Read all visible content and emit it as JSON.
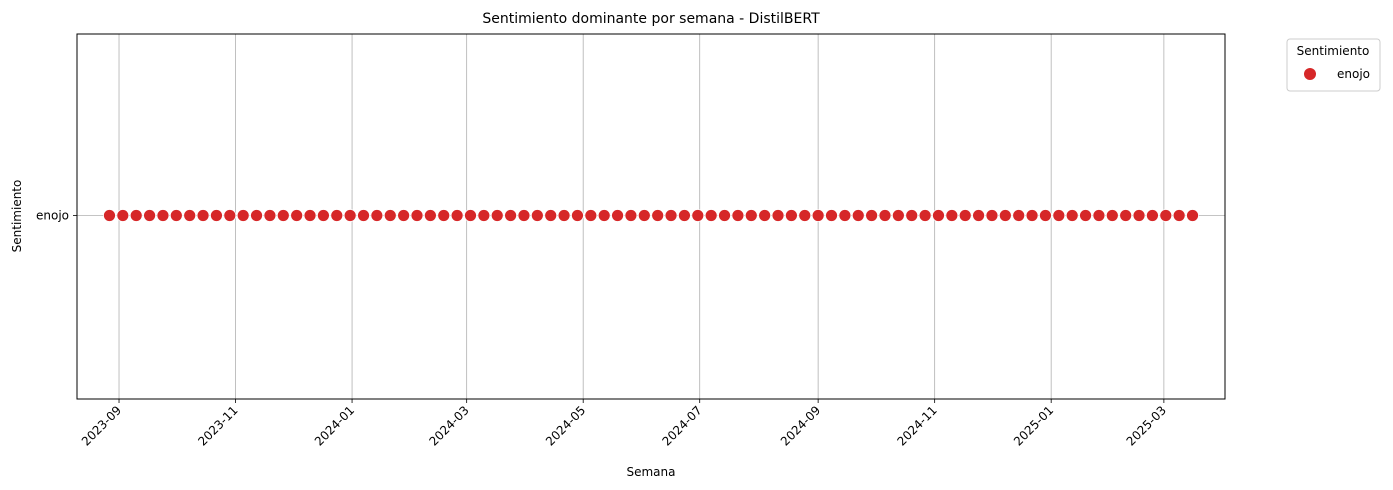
{
  "chart_data": {
    "type": "scatter",
    "title": "Sentimiento dominante por semana - DistilBERT",
    "xlabel": "Semana",
    "ylabel": "Sentimiento",
    "x_axis_type": "date",
    "x_start": "2023-08-27",
    "x_step_days": 7,
    "x_count": 82,
    "xlim": [
      "2023-08-10",
      "2025-04-02"
    ],
    "x_ticks": [
      "2023-09",
      "2023-11",
      "2024-01",
      "2024-03",
      "2024-05",
      "2024-07",
      "2024-09",
      "2024-11",
      "2025-01",
      "2025-03"
    ],
    "y_categories": [
      "enojo"
    ],
    "series": [
      {
        "name": "enojo",
        "y": "enojo",
        "color": "#d62728"
      }
    ],
    "legend": {
      "title": "Sentimiento",
      "position": "outside-top-right",
      "items": [
        "enojo"
      ]
    },
    "grid": true
  }
}
